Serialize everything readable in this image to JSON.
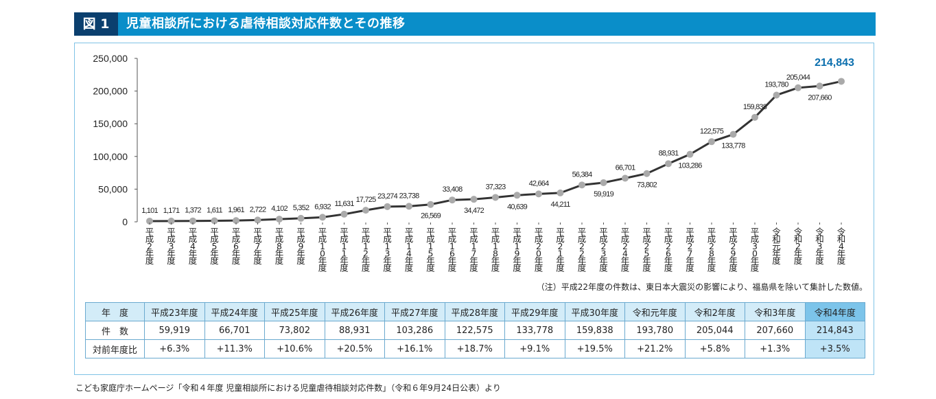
{
  "header": {
    "fig_label": "図 1",
    "title": "児童相談所における虐待相談対応件数とその推移"
  },
  "chart_data": {
    "type": "line",
    "categories": [
      "平成2年度",
      "平成3年度",
      "平成4年度",
      "平成5年度",
      "平成6年度",
      "平成7年度",
      "平成8年度",
      "平成9年度",
      "平成10年度",
      "平成11年度",
      "平成12年度",
      "平成13年度",
      "平成14年度",
      "平成15年度",
      "平成16年度",
      "平成17年度",
      "平成18年度",
      "平成19年度",
      "平成20年度",
      "平成21年度",
      "平成22年度",
      "平成23年度",
      "平成24年度",
      "平成25年度",
      "平成26年度",
      "平成27年度",
      "平成28年度",
      "平成29年度",
      "平成30年度",
      "令和元年度",
      "令和2年度",
      "令和3年度",
      "令和4年度"
    ],
    "values": [
      1101,
      1171,
      1372,
      1611,
      1961,
      2722,
      4102,
      5352,
      6932,
      11631,
      17725,
      23274,
      23738,
      26569,
      33408,
      34472,
      37323,
      40639,
      42664,
      44211,
      56384,
      59919,
      66701,
      73802,
      88931,
      103286,
      122575,
      133778,
      159838,
      193780,
      205044,
      207660,
      214843
    ],
    "value_labels": [
      "1,101",
      "1,171",
      "1,372",
      "1,611",
      "1,961",
      "2,722",
      "4,102",
      "5,352",
      "6,932",
      "11,631",
      "17,725",
      "23,274",
      "23,738",
      "26,569",
      "33,408",
      "34,472",
      "37,323",
      "40,639",
      "42,664",
      "44,211",
      "56,384",
      "59,919",
      "66,701",
      "73,802",
      "88,931",
      "103,286",
      "122,575",
      "133,778",
      "159,838",
      "193,780",
      "205,044",
      "207,660",
      "214,843"
    ],
    "ylim": [
      0,
      250000
    ],
    "yticks": [
      "0",
      "50,000",
      "100,000",
      "150,000",
      "200,000",
      "250,000"
    ],
    "grid": false,
    "line_color": "#333333",
    "marker_color": "#aaaaaa",
    "highlight_color": "#0b6fae"
  },
  "note": "（注）平成22年度の件数は、東日本大震災の影響により、福島県を除いて集計した数値。",
  "table": {
    "header_label": "年　度",
    "years": [
      "平成23年度",
      "平成24年度",
      "平成25年度",
      "平成26年度",
      "平成27年度",
      "平成28年度",
      "平成29年度",
      "平成30年度",
      "令和元年度",
      "令和2年度",
      "令和3年度",
      "令和4年度"
    ],
    "count_label": "件　数",
    "counts": [
      "59,919",
      "66,701",
      "73,802",
      "88,931",
      "103,286",
      "122,575",
      "133,778",
      "159,838",
      "193,780",
      "205,044",
      "207,660",
      "214,843"
    ],
    "ratio_label": "対前年度比",
    "ratios": [
      "+6.3%",
      "+11.3%",
      "+10.6%",
      "+20.5%",
      "+16.1%",
      "+18.7%",
      "+9.1%",
      "+19.5%",
      "+21.2%",
      "+5.8%",
      "+1.3%",
      "+3.5%"
    ]
  },
  "source": "こども家庭庁ホームページ「令和４年度 児童相談所における児童虐待相談対応件数」（令和６年9月24日公表）より"
}
